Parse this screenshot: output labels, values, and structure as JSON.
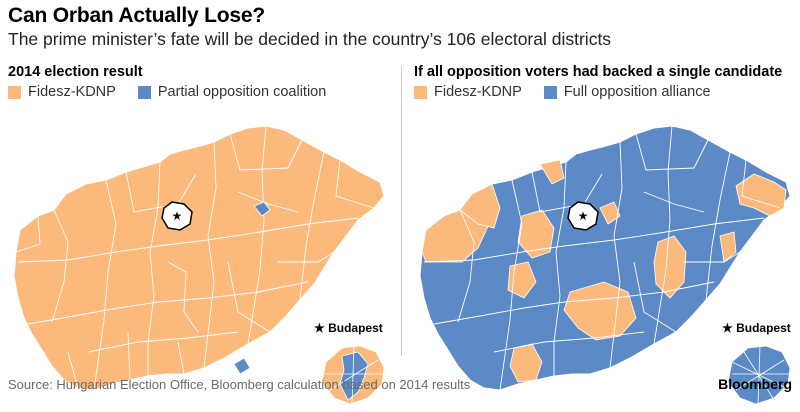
{
  "header": {
    "title": "Can Orban Actually Lose?",
    "subtitle": "The prime minister’s fate will be decided in the country’s 106 electoral districts"
  },
  "colors": {
    "fidesz": "#fcb97c",
    "opposition": "#5b8ac7",
    "border": "#ffffff",
    "divider": "#c8c8c8"
  },
  "panels": [
    {
      "title": "2014 election result",
      "legend": [
        "Fidesz-KDNP",
        "Partial opposition coalition"
      ],
      "inset_label": "★ Budapest"
    },
    {
      "title": "If all opposition voters had backed a single candidate",
      "legend": [
        "Fidesz-KDNP",
        "Full opposition alliance"
      ],
      "inset_label": "★ Budapest"
    }
  ],
  "footer": {
    "source": "Source: Hungarian Election Office, Bloomberg calculation based on 2014 results",
    "brand": "Bloomberg"
  }
}
